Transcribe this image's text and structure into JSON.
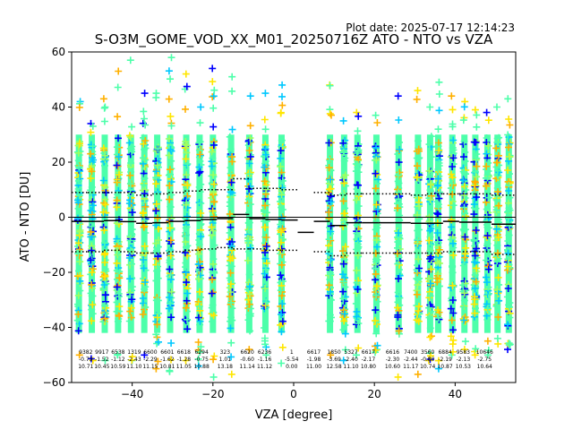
{
  "header": {
    "plot_date": "Plot date: 2025-07-17 12:14:23",
    "title": "S-O3M_GOME_VOD_XX_M01_20250716Z ATO - NTO vs VZA"
  },
  "colors": {
    "series_main": "#4dffaa",
    "series_cyan": "#00c8ff",
    "series_blue": "#0000ff",
    "series_yellow": "#ffe600",
    "series_orange": "#ffb000",
    "series_green": "#9dff60",
    "mean_line": "#000000"
  },
  "chart_data": {
    "type": "scatter",
    "title": "S-O3M_GOME_VOD_XX_M01_20250716Z ATO - NTO vs VZA",
    "xlabel": "VZA [degree]",
    "ylabel": "ATO - NTO [DU]",
    "xlim": [
      -55,
      55
    ],
    "ylim": [
      -60,
      60
    ],
    "xticks": [
      -40,
      -20,
      0,
      20,
      40
    ],
    "yticks": [
      -60,
      -40,
      -20,
      0,
      20,
      40,
      60
    ],
    "grid": false,
    "zero_line": true,
    "scatter_columns": [
      {
        "x": -53.2,
        "ymin": -50,
        "ymax": 42
      },
      {
        "x": -50.0,
        "ymin": -52,
        "ymax": 34
      },
      {
        "x": -46.8,
        "ymin": -52,
        "ymax": 43
      },
      {
        "x": -43.5,
        "ymin": -50,
        "ymax": 53
      },
      {
        "x": -40.3,
        "ymin": -52,
        "ymax": 57
      },
      {
        "x": -37.0,
        "ymin": -50,
        "ymax": 45
      },
      {
        "x": -33.8,
        "ymin": -55,
        "ymax": 45
      },
      {
        "x": -30.6,
        "ymin": -56,
        "ymax": 58
      },
      {
        "x": -26.6,
        "ymin": -52,
        "ymax": 52
      },
      {
        "x": -23.3,
        "ymin": -54,
        "ymax": 40
      },
      {
        "x": -20.0,
        "ymin": -58,
        "ymax": 54
      },
      {
        "x": -15.5,
        "ymin": -57,
        "ymax": 51
      },
      {
        "x": -11.0,
        "ymin": -48,
        "ymax": 44
      },
      {
        "x": -7.0,
        "ymin": -50,
        "ymax": 45
      },
      {
        "x": -3.0,
        "ymin": -53,
        "ymax": 48
      },
      {
        "x": 9.0,
        "ymin": -50,
        "ymax": 48
      },
      {
        "x": 12.5,
        "ymin": -52,
        "ymax": 35
      },
      {
        "x": 15.8,
        "ymin": -50,
        "ymax": 38
      },
      {
        "x": 20.5,
        "ymin": -49,
        "ymax": 37
      },
      {
        "x": 26.0,
        "ymin": -58,
        "ymax": 44
      },
      {
        "x": 30.8,
        "ymin": -57,
        "ymax": 46
      },
      {
        "x": 33.8,
        "ymin": -52,
        "ymax": 40
      },
      {
        "x": 35.8,
        "ymin": -55,
        "ymax": 49
      },
      {
        "x": 39.3,
        "ymin": -50,
        "ymax": 44
      },
      {
        "x": 42.3,
        "ymin": -48,
        "ymax": 42
      },
      {
        "x": 45.0,
        "ymin": -50,
        "ymax": 39
      },
      {
        "x": 48.0,
        "ymin": -50,
        "ymax": 38
      },
      {
        "x": 50.5,
        "ymin": -46,
        "ymax": 40
      },
      {
        "x": 53.3,
        "ymin": -48,
        "ymax": 43
      }
    ],
    "bins": [
      {
        "x0": -55,
        "x1": -51,
        "mean": -1.5,
        "p_hi": 9,
        "p_lo": -12.5
      },
      {
        "x0": -51,
        "x1": -47,
        "mean": -1.5,
        "p_hi": 9,
        "p_lo": -12.5
      },
      {
        "x0": -47,
        "x1": -43,
        "mean": -1.2,
        "p_hi": 9,
        "p_lo": -12
      },
      {
        "x0": -43,
        "x1": -39,
        "mean": -1.6,
        "p_hi": 9,
        "p_lo": -12.5
      },
      {
        "x0": -39,
        "x1": -35,
        "mean": -2.2,
        "p_hi": 8,
        "p_lo": -13
      },
      {
        "x0": -35,
        "x1": -31,
        "mean": -2.0,
        "p_hi": 8.5,
        "p_lo": -13
      },
      {
        "x0": -31,
        "x1": -27,
        "mean": -1.5,
        "p_hi": 9,
        "p_lo": -12.5
      },
      {
        "x0": -27,
        "x1": -23,
        "mean": -1.2,
        "p_hi": 9.5,
        "p_lo": -12
      },
      {
        "x0": -23,
        "x1": -19,
        "mean": -0.8,
        "p_hi": 10,
        "p_lo": -11.5
      },
      {
        "x0": -19,
        "x1": -15,
        "mean": -0.5,
        "p_hi": 10,
        "p_lo": -11
      },
      {
        "x0": -15,
        "x1": -11,
        "mean": 1.0,
        "p_hi": 14,
        "p_lo": -11.5
      },
      {
        "x0": -11,
        "x1": -7,
        "mean": -0.5,
        "p_hi": 10.5,
        "p_lo": -11.5
      },
      {
        "x0": -7,
        "x1": -3,
        "mean": -0.8,
        "p_hi": 10.5,
        "p_lo": -12
      },
      {
        "x0": -3,
        "x1": 1,
        "mean": -1.0,
        "p_hi": 10,
        "p_lo": -12
      },
      {
        "x0": 1,
        "x1": 5,
        "mean": -5.5,
        "p_hi": null,
        "p_lo": null
      },
      {
        "x0": 5,
        "x1": 9,
        "mean": -1.5,
        "p_hi": 9,
        "p_lo": -12.5
      },
      {
        "x0": 9,
        "x1": 13,
        "mean": -3.0,
        "p_hi": 8,
        "p_lo": -14
      },
      {
        "x0": 13,
        "x1": 17,
        "mean": -2.0,
        "p_hi": 8.5,
        "p_lo": -13
      },
      {
        "x0": 17,
        "x1": 21,
        "mean": -2.0,
        "p_hi": 8.5,
        "p_lo": -13
      },
      {
        "x0": 21,
        "x1": 25,
        "mean": -2.0,
        "p_hi": 8.5,
        "p_lo": -13
      },
      {
        "x0": 25,
        "x1": 29,
        "mean": -2.0,
        "p_hi": 8.5,
        "p_lo": -13
      },
      {
        "x0": 29,
        "x1": 33,
        "mean": -2.2,
        "p_hi": 8,
        "p_lo": -13
      },
      {
        "x0": 33,
        "x1": 37,
        "mean": -2.2,
        "p_hi": 8.5,
        "p_lo": -13
      },
      {
        "x0": 37,
        "x1": 41,
        "mean": -1.5,
        "p_hi": 8.5,
        "p_lo": -12.5
      },
      {
        "x0": 41,
        "x1": 45,
        "mean": -1.8,
        "p_hi": 8.5,
        "p_lo": -12.5
      },
      {
        "x0": 45,
        "x1": 49,
        "mean": -1.8,
        "p_hi": 8.5,
        "p_lo": -12.5
      },
      {
        "x0": 49,
        "x1": 55,
        "mean": -2.5,
        "p_hi": 8,
        "p_lo": -13.5
      }
    ],
    "stats": [
      {
        "x": -51.5,
        "count": "9382",
        "mean": "-0.79",
        "std": "10.71"
      },
      {
        "x": -47.5,
        "count": "9917",
        "mean": "-1.52",
        "std": "10.45"
      },
      {
        "x": -43.5,
        "count": "6538",
        "mean": "-1.12",
        "std": "10.59"
      },
      {
        "x": -39.5,
        "count": "1319",
        "mean": "-2.43",
        "std": "11.10"
      },
      {
        "x": -35.5,
        "count": "6600",
        "mean": "-2.29",
        "std": "11.15"
      },
      {
        "x": -31.3,
        "count": "6601",
        "mean": "-1.62",
        "std": "10.81"
      },
      {
        "x": -27.2,
        "count": "6618",
        "mean": "-1.28",
        "std": "11.05"
      },
      {
        "x": -22.8,
        "count": "6294",
        "mean": "-0.75",
        "std": "10.88"
      },
      {
        "x": -17.0,
        "count": "323",
        "mean": "1.01",
        "std": "13.18"
      },
      {
        "x": -11.5,
        "count": "6620",
        "mean": "-0.60",
        "std": "11.14"
      },
      {
        "x": -7.2,
        "count": "6236",
        "mean": "-1.16",
        "std": "11.12"
      },
      {
        "x": -0.5,
        "count": "1",
        "mean": "-5.54",
        "std": "0.00"
      },
      {
        "x": 5.0,
        "count": "6617",
        "mean": "-1.98",
        "std": "11.00"
      },
      {
        "x": 10.0,
        "count": "1850",
        "mean": "-3.69",
        "std": "12.58"
      },
      {
        "x": 14.2,
        "count": "5327",
        "mean": "-2.40",
        "std": "11.10"
      },
      {
        "x": 18.5,
        "count": "6617",
        "mean": "-2.17",
        "std": "10.80"
      },
      {
        "x": 24.5,
        "count": "6616",
        "mean": "-2.30",
        "std": "10.60"
      },
      {
        "x": 29.0,
        "count": "7400",
        "mean": "-2.44",
        "std": "11.17"
      },
      {
        "x": 33.2,
        "count": "3560",
        "mean": "-0.80",
        "std": "10.74"
      },
      {
        "x": 37.5,
        "count": "6884",
        "mean": "-2.19",
        "std": "10.87"
      },
      {
        "x": 42.0,
        "count": "9583",
        "mean": "-2.13",
        "std": "10.53"
      },
      {
        "x": 47.3,
        "count": "10646",
        "mean": "-2.75",
        "std": "10.64"
      }
    ]
  }
}
